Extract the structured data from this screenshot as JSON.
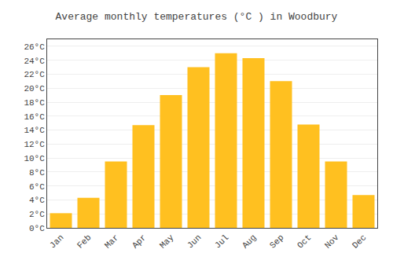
{
  "chart_data": {
    "type": "bar",
    "title": "Average monthly temperatures (°C ) in Woodbury",
    "categories": [
      "Jan",
      "Feb",
      "Mar",
      "Apr",
      "May",
      "Jun",
      "Jul",
      "Aug",
      "Sep",
      "Oct",
      "Nov",
      "Dec"
    ],
    "values": [
      2.1,
      4.3,
      9.5,
      14.7,
      19.0,
      23.0,
      25.0,
      24.3,
      21.0,
      14.8,
      9.5,
      4.7
    ],
    "color": "#FFC020",
    "ylim": [
      0,
      27
    ],
    "yticks": [
      {
        "value": 0,
        "label": "0°C"
      },
      {
        "value": 2,
        "label": "2°C"
      },
      {
        "value": 4,
        "label": "4°C"
      },
      {
        "value": 6,
        "label": "6°C"
      },
      {
        "value": 8,
        "label": "8°C"
      },
      {
        "value": 10,
        "label": "10°C"
      },
      {
        "value": 12,
        "label": "12°C"
      },
      {
        "value": 14,
        "label": "14°C"
      },
      {
        "value": 16,
        "label": "16°C"
      },
      {
        "value": 18,
        "label": "18°C"
      },
      {
        "value": 20,
        "label": "20°C"
      },
      {
        "value": 22,
        "label": "22°C"
      },
      {
        "value": 24,
        "label": "24°C"
      },
      {
        "value": 26,
        "label": "26°C"
      }
    ],
    "grid": true
  }
}
